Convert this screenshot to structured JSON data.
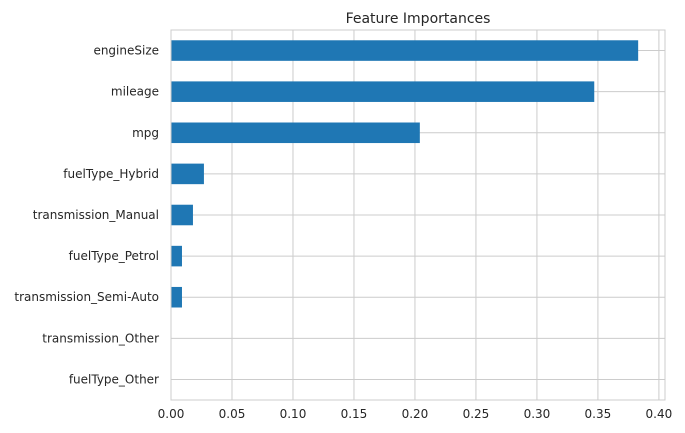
{
  "chart_data": {
    "type": "bar",
    "orientation": "horizontal",
    "title": "Feature Importances",
    "xlabel": "",
    "ylabel": "",
    "categories": [
      "engineSize",
      "mileage",
      "mpg",
      "fuelType_Hybrid",
      "transmission_Manual",
      "fuelType_Petrol",
      "transmission_Semi-Auto",
      "transmission_Other",
      "fuelType_Other"
    ],
    "values": [
      0.383,
      0.347,
      0.204,
      0.027,
      0.018,
      0.009,
      0.009,
      0.0,
      0.0
    ],
    "xlim": [
      0.0,
      0.405
    ],
    "xticks": [
      0.0,
      0.05,
      0.1,
      0.15,
      0.2,
      0.25,
      0.3,
      0.35,
      0.4
    ],
    "xtick_labels": [
      "0.00",
      "0.05",
      "0.10",
      "0.15",
      "0.20",
      "0.25",
      "0.30",
      "0.35",
      "0.40"
    ],
    "bar_color": "#1f77b4",
    "grid": true
  }
}
